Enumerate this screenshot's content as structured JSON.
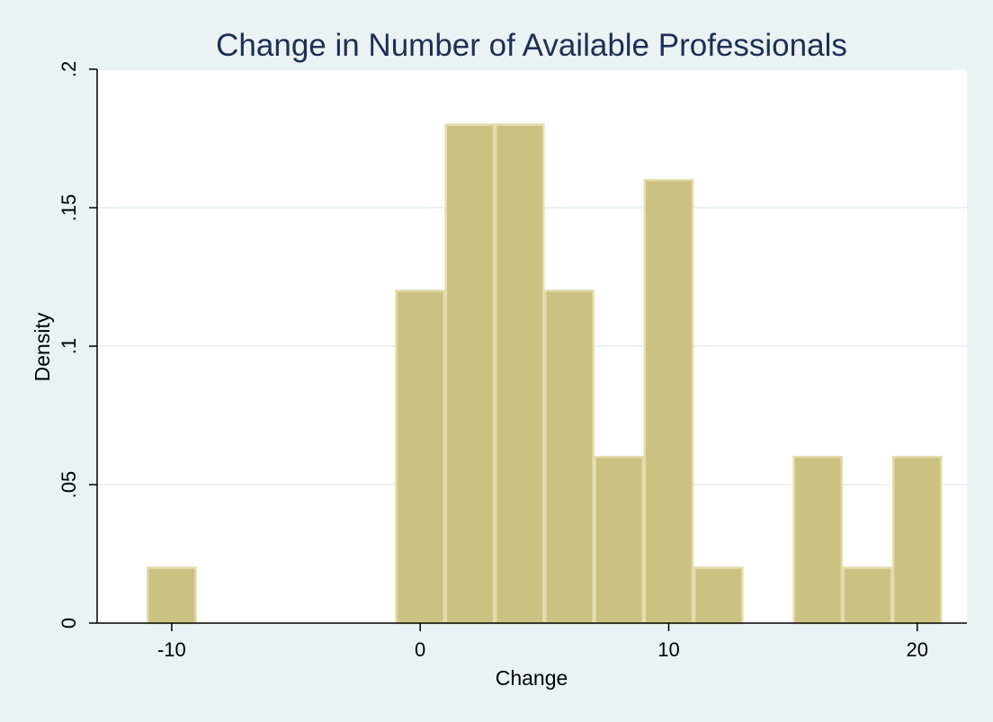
{
  "chart_data": {
    "type": "bar",
    "title": "Change in Number of Available Professionals",
    "xlabel": "Change",
    "ylabel": "Density",
    "xlim": [
      -13,
      22
    ],
    "ylim": [
      0,
      0.2
    ],
    "bin_width": 2,
    "bins": [
      {
        "start": -11,
        "end": -9,
        "value": 0.02
      },
      {
        "start": -1,
        "end": 1,
        "value": 0.12
      },
      {
        "start": 1,
        "end": 3,
        "value": 0.18
      },
      {
        "start": 3,
        "end": 5,
        "value": 0.18
      },
      {
        "start": 5,
        "end": 7,
        "value": 0.12
      },
      {
        "start": 7,
        "end": 9,
        "value": 0.06
      },
      {
        "start": 9,
        "end": 11,
        "value": 0.16
      },
      {
        "start": 11,
        "end": 13,
        "value": 0.02
      },
      {
        "start": 15,
        "end": 17,
        "value": 0.06
      },
      {
        "start": 17,
        "end": 19,
        "value": 0.02
      },
      {
        "start": 19,
        "end": 21,
        "value": 0.06
      }
    ],
    "x_ticks": [
      {
        "value": -10,
        "label": "-10"
      },
      {
        "value": 0,
        "label": "0"
      },
      {
        "value": 10,
        "label": "10"
      },
      {
        "value": 20,
        "label": "20"
      }
    ],
    "y_ticks": [
      {
        "value": 0,
        "label": "0"
      },
      {
        "value": 0.05,
        "label": ".05"
      },
      {
        "value": 0.1,
        "label": ".1"
      },
      {
        "value": 0.15,
        "label": ".15"
      },
      {
        "value": 0.2,
        "label": ".2"
      }
    ],
    "grid": true,
    "colors": {
      "background": "#eaf2f3",
      "plot_background": "#ffffff",
      "bar_fill": "#cbc282",
      "bar_stroke": "#e3dcab",
      "gridline": "#eaf2f3",
      "title": "#1e2f55"
    }
  }
}
